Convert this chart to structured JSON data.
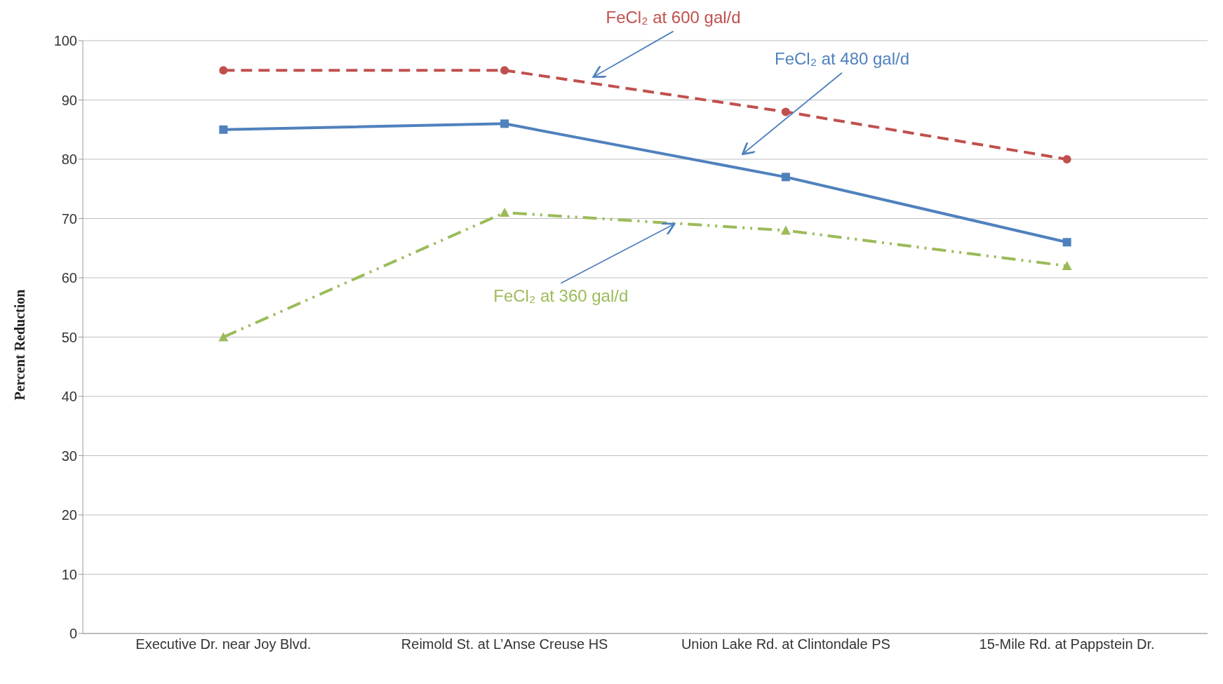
{
  "chart_data": {
    "type": "line",
    "ylabel": "Percent Reduction",
    "categories": [
      "Executive Dr. near Joy Blvd.",
      "Reimold St. at L’Anse Creuse HS",
      "Union Lake Rd. at Clintondale PS",
      "15-Mile Rd. at Pappstein Dr."
    ],
    "series": [
      {
        "name": "FeCl₂ at 600 gal/d",
        "color": "#c0504d",
        "values": [
          95,
          95,
          88,
          80
        ],
        "marker": "circle",
        "line_style": "dashed"
      },
      {
        "name": "FeCl₂ at 480 gal/d",
        "color": "#4f81bd",
        "values": [
          85,
          86,
          77,
          66
        ],
        "marker": "square",
        "line_style": "solid"
      },
      {
        "name": "FeCl₂ at 360 gal/d",
        "color": "#9bbb59",
        "values": [
          50,
          71,
          68,
          62
        ],
        "marker": "triangle",
        "line_style": "dashdot"
      }
    ],
    "ylim": [
      0,
      100
    ],
    "yticks": [
      0,
      10,
      20,
      30,
      40,
      50,
      60,
      70,
      80,
      90,
      100
    ],
    "grid": "y"
  }
}
